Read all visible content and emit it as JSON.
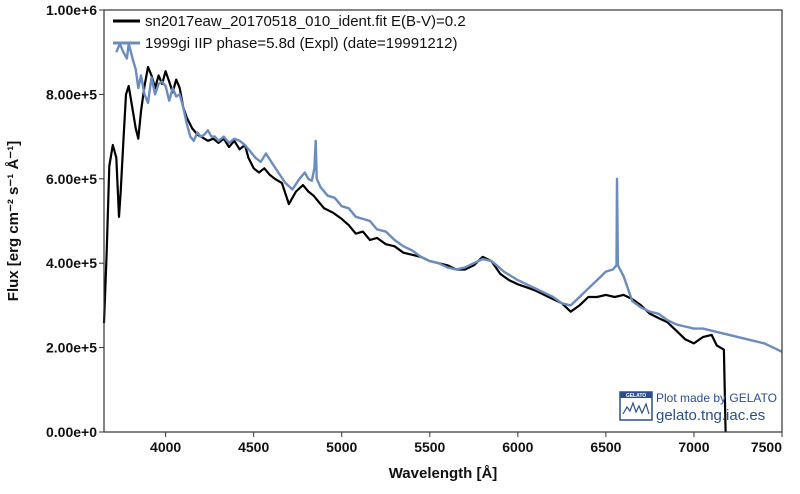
{
  "chart_data": {
    "type": "line",
    "xlabel": "Wavelength [Å]",
    "ylabel": "Flux [erg cm⁻² s⁻¹ Å⁻¹]",
    "xlim": [
      3650,
      7500
    ],
    "ylim": [
      0,
      1000000
    ],
    "x_ticks": [
      4000,
      4500,
      5000,
      5500,
      6000,
      6500,
      7000,
      7500
    ],
    "x_tick_labels": [
      "4000",
      "4500",
      "5000",
      "5500",
      "6000",
      "6500",
      "7000",
      "7500"
    ],
    "y_ticks": [
      0,
      200000,
      400000,
      600000,
      800000,
      1000000
    ],
    "y_tick_labels": [
      "0.00e+0",
      "2.00e+5",
      "4.00e+5",
      "6.00e+5",
      "8.00e+5",
      "1.00e+6"
    ],
    "grid": false,
    "legend_position": "top-left",
    "series": [
      {
        "name": "sn2017eaw_20170518_010_ident.fit  E(B-V)=0.2",
        "color": "#000000",
        "points": [
          [
            3650,
            258000
          ],
          [
            3665,
            420000
          ],
          [
            3680,
            630000
          ],
          [
            3700,
            680000
          ],
          [
            3720,
            650000
          ],
          [
            3735,
            510000
          ],
          [
            3745,
            570000
          ],
          [
            3760,
            690000
          ],
          [
            3775,
            800000
          ],
          [
            3790,
            820000
          ],
          [
            3810,
            770000
          ],
          [
            3830,
            720000
          ],
          [
            3845,
            695000
          ],
          [
            3860,
            760000
          ],
          [
            3880,
            820000
          ],
          [
            3900,
            865000
          ],
          [
            3920,
            845000
          ],
          [
            3940,
            815000
          ],
          [
            3960,
            845000
          ],
          [
            3980,
            825000
          ],
          [
            4000,
            855000
          ],
          [
            4020,
            830000
          ],
          [
            4040,
            805000
          ],
          [
            4060,
            835000
          ],
          [
            4080,
            815000
          ],
          [
            4100,
            770000
          ],
          [
            4120,
            745000
          ],
          [
            4150,
            720000
          ],
          [
            4180,
            705000
          ],
          [
            4200,
            700000
          ],
          [
            4240,
            690000
          ],
          [
            4270,
            695000
          ],
          [
            4300,
            685000
          ],
          [
            4330,
            695000
          ],
          [
            4360,
            675000
          ],
          [
            4390,
            690000
          ],
          [
            4420,
            670000
          ],
          [
            4450,
            680000
          ],
          [
            4470,
            650000
          ],
          [
            4500,
            625000
          ],
          [
            4530,
            615000
          ],
          [
            4560,
            625000
          ],
          [
            4590,
            610000
          ],
          [
            4620,
            600000
          ],
          [
            4660,
            590000
          ],
          [
            4700,
            540000
          ],
          [
            4740,
            570000
          ],
          [
            4780,
            585000
          ],
          [
            4810,
            570000
          ],
          [
            4840,
            560000
          ],
          [
            4870,
            545000
          ],
          [
            4900,
            530000
          ],
          [
            4950,
            520000
          ],
          [
            5000,
            505000
          ],
          [
            5040,
            490000
          ],
          [
            5080,
            470000
          ],
          [
            5120,
            475000
          ],
          [
            5160,
            455000
          ],
          [
            5200,
            460000
          ],
          [
            5250,
            445000
          ],
          [
            5300,
            440000
          ],
          [
            5350,
            425000
          ],
          [
            5400,
            420000
          ],
          [
            5450,
            415000
          ],
          [
            5500,
            405000
          ],
          [
            5550,
            400000
          ],
          [
            5600,
            395000
          ],
          [
            5650,
            385000
          ],
          [
            5700,
            385000
          ],
          [
            5750,
            395000
          ],
          [
            5800,
            415000
          ],
          [
            5850,
            405000
          ],
          [
            5900,
            375000
          ],
          [
            5950,
            360000
          ],
          [
            6000,
            350000
          ],
          [
            6050,
            343000
          ],
          [
            6100,
            335000
          ],
          [
            6150,
            325000
          ],
          [
            6200,
            315000
          ],
          [
            6250,
            305000
          ],
          [
            6300,
            285000
          ],
          [
            6350,
            300000
          ],
          [
            6400,
            320000
          ],
          [
            6450,
            320000
          ],
          [
            6500,
            325000
          ],
          [
            6550,
            320000
          ],
          [
            6600,
            325000
          ],
          [
            6650,
            315000
          ],
          [
            6700,
            300000
          ],
          [
            6750,
            280000
          ],
          [
            6800,
            270000
          ],
          [
            6850,
            260000
          ],
          [
            6900,
            240000
          ],
          [
            6950,
            220000
          ],
          [
            7000,
            210000
          ],
          [
            7050,
            225000
          ],
          [
            7100,
            230000
          ],
          [
            7130,
            205000
          ],
          [
            7150,
            200000
          ],
          [
            7170,
            195000
          ],
          [
            7180,
            0
          ]
        ]
      },
      {
        "name": "1999gi  IIP  phase=5.8d (Expl)  (date=19991212)",
        "color": "#6b8cbe",
        "points": [
          [
            3720,
            900000
          ],
          [
            3740,
            920000
          ],
          [
            3760,
            900000
          ],
          [
            3780,
            885000
          ],
          [
            3790,
            920000
          ],
          [
            3800,
            905000
          ],
          [
            3815,
            880000
          ],
          [
            3830,
            860000
          ],
          [
            3845,
            815000
          ],
          [
            3860,
            845000
          ],
          [
            3880,
            800000
          ],
          [
            3900,
            780000
          ],
          [
            3920,
            840000
          ],
          [
            3940,
            800000
          ],
          [
            3960,
            825000
          ],
          [
            3980,
            830000
          ],
          [
            4000,
            820000
          ],
          [
            4020,
            785000
          ],
          [
            4040,
            815000
          ],
          [
            4060,
            795000
          ],
          [
            4080,
            800000
          ],
          [
            4100,
            770000
          ],
          [
            4120,
            730000
          ],
          [
            4140,
            700000
          ],
          [
            4160,
            690000
          ],
          [
            4180,
            710000
          ],
          [
            4200,
            700000
          ],
          [
            4220,
            705000
          ],
          [
            4240,
            715000
          ],
          [
            4260,
            700000
          ],
          [
            4280,
            700000
          ],
          [
            4300,
            690000
          ],
          [
            4330,
            700000
          ],
          [
            4360,
            685000
          ],
          [
            4390,
            695000
          ],
          [
            4420,
            690000
          ],
          [
            4450,
            680000
          ],
          [
            4480,
            665000
          ],
          [
            4510,
            650000
          ],
          [
            4540,
            640000
          ],
          [
            4570,
            660000
          ],
          [
            4600,
            640000
          ],
          [
            4640,
            615000
          ],
          [
            4680,
            590000
          ],
          [
            4720,
            575000
          ],
          [
            4760,
            600000
          ],
          [
            4790,
            615000
          ],
          [
            4810,
            600000
          ],
          [
            4830,
            595000
          ],
          [
            4845,
            625000
          ],
          [
            4852,
            690000
          ],
          [
            4858,
            600000
          ],
          [
            4880,
            580000
          ],
          [
            4920,
            560000
          ],
          [
            4960,
            555000
          ],
          [
            5000,
            535000
          ],
          [
            5040,
            530000
          ],
          [
            5080,
            510000
          ],
          [
            5120,
            505000
          ],
          [
            5160,
            500000
          ],
          [
            5200,
            480000
          ],
          [
            5250,
            475000
          ],
          [
            5300,
            455000
          ],
          [
            5350,
            440000
          ],
          [
            5400,
            430000
          ],
          [
            5450,
            415000
          ],
          [
            5500,
            405000
          ],
          [
            5550,
            400000
          ],
          [
            5600,
            390000
          ],
          [
            5650,
            385000
          ],
          [
            5700,
            390000
          ],
          [
            5750,
            400000
          ],
          [
            5800,
            410000
          ],
          [
            5850,
            405000
          ],
          [
            5880,
            395000
          ],
          [
            5920,
            380000
          ],
          [
            5960,
            370000
          ],
          [
            6000,
            360000
          ],
          [
            6050,
            350000
          ],
          [
            6100,
            340000
          ],
          [
            6150,
            330000
          ],
          [
            6200,
            320000
          ],
          [
            6250,
            305000
          ],
          [
            6300,
            300000
          ],
          [
            6350,
            320000
          ],
          [
            6400,
            340000
          ],
          [
            6450,
            360000
          ],
          [
            6500,
            380000
          ],
          [
            6540,
            385000
          ],
          [
            6560,
            395000
          ],
          [
            6563,
            600000
          ],
          [
            6568,
            395000
          ],
          [
            6600,
            370000
          ],
          [
            6650,
            310000
          ],
          [
            6700,
            295000
          ],
          [
            6750,
            285000
          ],
          [
            6800,
            280000
          ],
          [
            6850,
            265000
          ],
          [
            6900,
            255000
          ],
          [
            6950,
            250000
          ],
          [
            7000,
            245000
          ],
          [
            7050,
            245000
          ],
          [
            7100,
            240000
          ],
          [
            7150,
            235000
          ],
          [
            7200,
            230000
          ],
          [
            7250,
            225000
          ],
          [
            7300,
            220000
          ],
          [
            7350,
            215000
          ],
          [
            7400,
            210000
          ],
          [
            7450,
            200000
          ],
          [
            7500,
            190000
          ]
        ]
      }
    ]
  },
  "credit": {
    "line1": "Plot made by GELATO",
    "line2": "gelato.tng.iac.es",
    "logo_text": "GELATO"
  }
}
